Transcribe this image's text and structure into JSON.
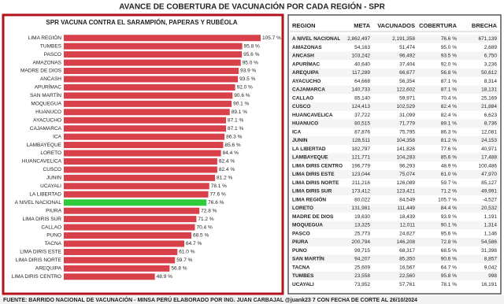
{
  "title": "AVANCE DE COBERTURA DE VACUNACIÓN POR CADA REGIÓN - SPR",
  "footer": "FUENTE: BARRIDO NACIONAL DE VACUNACIÓN - MINSA PERÚ ELABORADO POR ING. JUAN CARBAJAL @juank23 7 CON FECHA DE CORTE AL 26/10/2024",
  "chart_data": {
    "type": "hbar",
    "title": "SPR VACUNA CONTRA EL SARAMPIÓN, PAPERAS Y RUBÉOLA",
    "categories": [
      "LIMA REGIÓN",
      "TUMBES",
      "PASCO",
      "AMAZONAS",
      "MADRE DE DIOS",
      "ANCASH",
      "APURÍMAC",
      "SAN MARTÍN",
      "MOQUEGUA",
      "HUANUCO",
      "AYACUCHO",
      "CAJAMARCA",
      "ICA",
      "LAMBAYEQUE",
      "LORETO",
      "HUANCAVELICA",
      "CUSCO",
      "JUNIN",
      "UCAYALI",
      "LA LIBERTAD",
      "A NIVEL NACIONAL",
      "PIURA",
      "LIMA DIRIS SUR",
      "CALLAO",
      "PUNO",
      "TACNA",
      "LIMA DIRIS ESTE",
      "LIMA DIRIS NORTE",
      "AREQUIPA",
      "LIMA DIRIS CENTRO"
    ],
    "values": [
      105.7,
      95.8,
      95.6,
      95.0,
      93.9,
      93.5,
      92.0,
      90.6,
      90.1,
      89.1,
      87.1,
      87.1,
      86.3,
      85.6,
      84.4,
      82.4,
      82.4,
      81.2,
      78.1,
      77.6,
      76.6,
      72.8,
      71.2,
      70.4,
      68.5,
      64.7,
      61.0,
      59.7,
      56.8,
      48.9
    ],
    "value_labels": [
      "105.7 %",
      "95.8 %",
      "95.6 %",
      "95.0 %",
      "93.9 %",
      "93.5 %",
      "92.0 %",
      "90.6 %",
      "90.1 %",
      "89.1 %",
      "87.1 %",
      "87.1 %",
      "86.3 %",
      "85.6 %",
      "84.4 %",
      "82.4 %",
      "82.4 %",
      "81.2 %",
      "78.1 %",
      "77.6 %",
      "76.6 %",
      "72.8 %",
      "71.2 %",
      "70.4 %",
      "68.5 %",
      "64.7 %",
      "61.0 %",
      "59.7 %",
      "56.8 %",
      "48.9 %"
    ],
    "colors": [
      "#d8404a",
      "#d8404a",
      "#d8404a",
      "#d8404a",
      "#d8404a",
      "#d8404a",
      "#d8404a",
      "#d8404a",
      "#d8404a",
      "#d8404a",
      "#d8404a",
      "#d8404a",
      "#d8404a",
      "#d8404a",
      "#d8404a",
      "#d8404a",
      "#d8404a",
      "#d8404a",
      "#d8404a",
      "#d8404a",
      "#2ecc3a",
      "#d8404a",
      "#d8404a",
      "#d8404a",
      "#d8404a",
      "#d8404a",
      "#d8404a",
      "#d8404a",
      "#d8404a",
      "#d8404a"
    ]
  },
  "table": {
    "columns": [
      "REGION",
      "META",
      "VACUNADOS",
      "COBERTURA",
      "BRECHA"
    ],
    "rows": [
      [
        "A NIVEL NACIONAL",
        "2,862,497",
        "2,191,358",
        "76.6 %",
        "671,139"
      ],
      [
        "AMAZONAS",
        "54,163",
        "51,474",
        "95.0 %",
        "2,689"
      ],
      [
        "ANCASH",
        "103,242",
        "96,492",
        "93.5 %",
        "6,750"
      ],
      [
        "APURÍMAC",
        "40,640",
        "37,404",
        "92.0 %",
        "3,236"
      ],
      [
        "AREQUIPA",
        "117,289",
        "66,677",
        "56.8 %",
        "50,612"
      ],
      [
        "AYACUCHO",
        "64,668",
        "56,354",
        "87.1 %",
        "8,314"
      ],
      [
        "CAJAMARCA",
        "140,733",
        "122,602",
        "87.1 %",
        "18,131"
      ],
      [
        "CALLAO",
        "85,140",
        "59,971",
        "70.4 %",
        "25,169"
      ],
      [
        "CUSCO",
        "124,413",
        "102,529",
        "82.4 %",
        "21,884"
      ],
      [
        "HUANCAVELICA",
        "37,722",
        "31,099",
        "82.4 %",
        "6,623"
      ],
      [
        "HUANUCO",
        "80,515",
        "71,779",
        "89.1 %",
        "8,736"
      ],
      [
        "ICA",
        "87,876",
        "75,795",
        "86.3 %",
        "12,081"
      ],
      [
        "JUNIN",
        "128,511",
        "104,358",
        "81.2 %",
        "24,153"
      ],
      [
        "LA LIBERTAD",
        "182,797",
        "141,826",
        "77.6 %",
        "40,971"
      ],
      [
        "LAMBAYEQUE",
        "121,771",
        "104,283",
        "85.6 %",
        "17,488"
      ],
      [
        "LIMA DIRIS CENTRO",
        "196,779",
        "96,293",
        "48.9 %",
        "100,486"
      ],
      [
        "LIMA DIRIS ESTE",
        "123,044",
        "75,074",
        "61.0 %",
        "47,970"
      ],
      [
        "LIMA DIRIS NORTE",
        "211,216",
        "126,089",
        "59.7 %",
        "85,127"
      ],
      [
        "LIMA DIRIS SUR",
        "173,412",
        "123,421",
        "71.2 %",
        "49,991"
      ],
      [
        "LIMA REGIÓN",
        "80,022",
        "84,549",
        "105.7 %",
        "-4,527"
      ],
      [
        "LORETO",
        "131,981",
        "111,449",
        "84.4 %",
        "20,532"
      ],
      [
        "MADRE DE DIOS",
        "19,630",
        "18,439",
        "93.9 %",
        "1,191"
      ],
      [
        "MOQUEGUA",
        "13,325",
        "12,011",
        "90.1 %",
        "1,314"
      ],
      [
        "PASCO",
        "25,773",
        "24,627",
        "95.6 %",
        "1,146"
      ],
      [
        "PIURA",
        "200,794",
        "146,208",
        "72.8 %",
        "54,586"
      ],
      [
        "PUNO",
        "99,715",
        "68,317",
        "68.5 %",
        "31,398"
      ],
      [
        "SAN MARTÍN",
        "94,207",
        "85,350",
        "90.6 %",
        "8,857"
      ],
      [
        "TACNA",
        "25,609",
        "16,567",
        "64.7 %",
        "9,042"
      ],
      [
        "TUMBES",
        "23,558",
        "22,560",
        "95.8 %",
        "998"
      ],
      [
        "UCAYALI",
        "73,952",
        "57,761",
        "78.1 %",
        "16,191"
      ]
    ]
  }
}
